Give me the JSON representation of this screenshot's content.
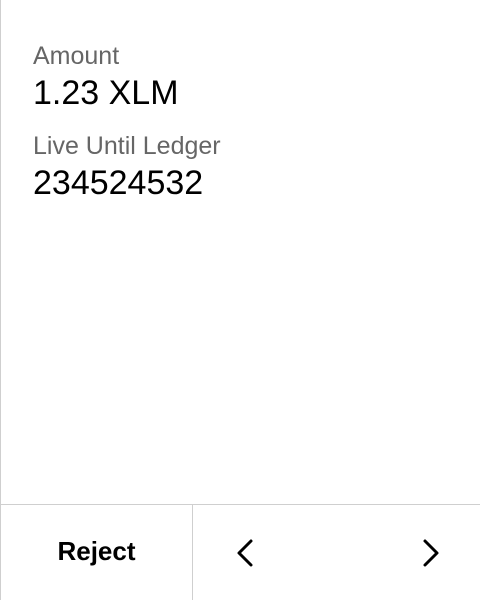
{
  "fields": [
    {
      "label": "Amount",
      "value": "1.23 XLM"
    },
    {
      "label": "Live Until Ledger",
      "value": "234524532"
    }
  ],
  "footer": {
    "reject_label": "Reject",
    "prev_icon": "chevron-left-icon",
    "next_icon": "chevron-right-icon"
  },
  "colors": {
    "background": "#ffffff",
    "label": "#666666",
    "value": "#000000",
    "divider": "#cfcfcf"
  }
}
